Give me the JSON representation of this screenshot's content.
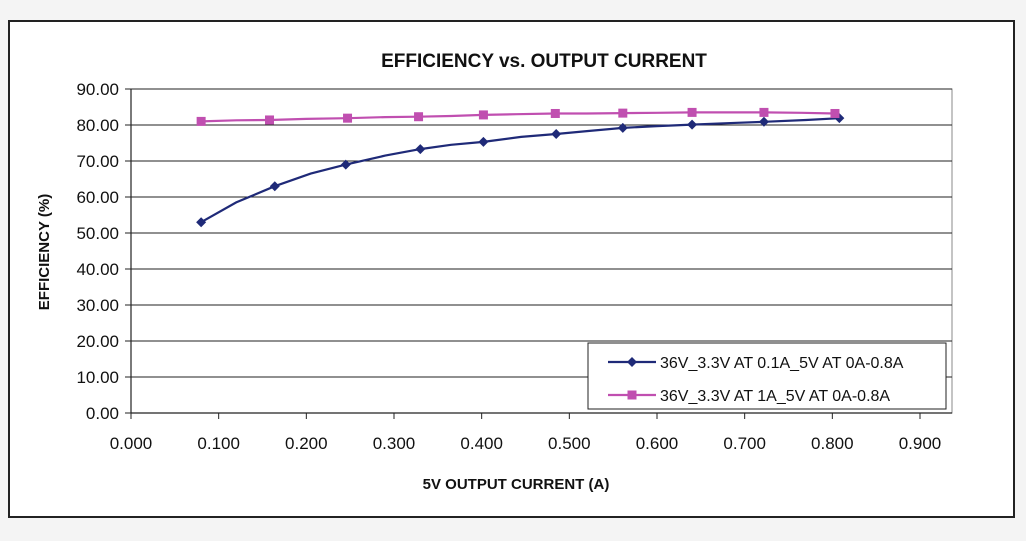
{
  "chart_data": {
    "type": "line",
    "title": "EFFICIENCY vs. OUTPUT CURRENT",
    "xlabel": "5V OUTPUT CURRENT (A)",
    "ylabel": "EFFICIENCY (%)",
    "xlim": [
      0,
      0.9
    ],
    "ylim": [
      0,
      90
    ],
    "x_ticks": [
      "0.000",
      "0.100",
      "0.200",
      "0.300",
      "0.400",
      "0.500",
      "0.600",
      "0.700",
      "0.800",
      "0.900"
    ],
    "y_ticks": [
      "0.00",
      "10.00",
      "20.00",
      "30.00",
      "40.00",
      "50.00",
      "60.00",
      "70.00",
      "80.00",
      "90.00"
    ],
    "grid": "horizontal",
    "legend_position": "bottom-right",
    "series": [
      {
        "name": "36V_3.3V AT 0.1A_5V AT 0A-0.8A",
        "color": "#1f2a78",
        "marker": "diamond",
        "x": [
          0.08,
          0.12,
          0.164,
          0.205,
          0.245,
          0.29,
          0.33,
          0.365,
          0.402,
          0.445,
          0.485,
          0.52,
          0.561,
          0.6,
          0.64,
          0.68,
          0.722,
          0.77,
          0.808
        ],
        "y": [
          53.0,
          58.5,
          63.0,
          66.5,
          69.0,
          71.5,
          73.3,
          74.5,
          75.3,
          76.7,
          77.5,
          78.3,
          79.2,
          79.7,
          80.1,
          80.5,
          80.9,
          81.4,
          81.9
        ],
        "markers_at": [
          0,
          2,
          4,
          6,
          8,
          10,
          12,
          14,
          16,
          18
        ]
      },
      {
        "name": "36V_3.3V AT 1A_5V AT 0A-0.8A",
        "color": "#c04fb0",
        "marker": "square",
        "x": [
          0.08,
          0.12,
          0.158,
          0.2,
          0.247,
          0.29,
          0.328,
          0.365,
          0.402,
          0.44,
          0.484,
          0.52,
          0.561,
          0.6,
          0.64,
          0.68,
          0.722,
          0.765,
          0.803
        ],
        "y": [
          81.0,
          81.3,
          81.4,
          81.7,
          81.9,
          82.2,
          82.3,
          82.5,
          82.8,
          83.0,
          83.2,
          83.2,
          83.3,
          83.4,
          83.5,
          83.5,
          83.5,
          83.4,
          83.2
        ],
        "markers_at": [
          0,
          2,
          4,
          6,
          8,
          10,
          12,
          14,
          16,
          18
        ]
      }
    ]
  }
}
